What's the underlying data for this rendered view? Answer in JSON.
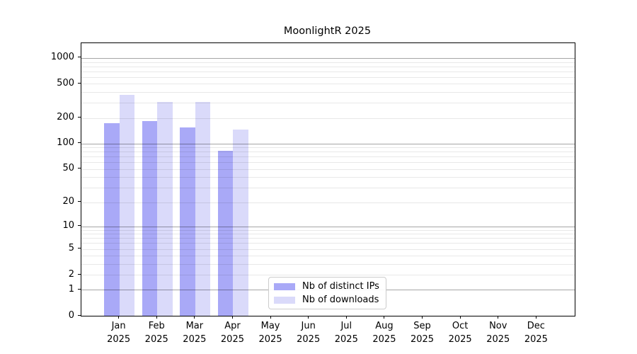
{
  "title": "MoonlightR 2025",
  "chart_data": {
    "type": "bar",
    "title": "MoonlightR 2025",
    "x": {
      "months": [
        "Jan",
        "Feb",
        "Mar",
        "Apr",
        "May",
        "Jun",
        "Jul",
        "Aug",
        "Sep",
        "Oct",
        "Nov",
        "Dec"
      ],
      "year": "2025"
    },
    "series": [
      {
        "name": "Nb of distinct IPs",
        "key": "distinct-ips",
        "color": "#a9a9f7",
        "values": [
          175,
          185,
          155,
          82,
          null,
          null,
          null,
          null,
          null,
          null,
          null,
          null
        ]
      },
      {
        "name": "Nb of downloads",
        "key": "downloads",
        "color": "#dadafa",
        "values": [
          370,
          310,
          310,
          145,
          null,
          null,
          null,
          null,
          null,
          null,
          null,
          null
        ]
      }
    ],
    "y_axis": {
      "scale": "log1p",
      "tick_labels": [
        1000,
        500,
        200,
        100,
        50,
        20,
        10,
        5,
        2,
        1,
        0
      ],
      "range": [
        0,
        1490
      ],
      "major_gridlines": [
        1,
        10,
        100,
        1000
      ]
    },
    "legend": {
      "position": "lower center"
    },
    "grid": {
      "major": true,
      "minor": true,
      "on_top_of_bars": true
    },
    "colors": {
      "axis": "#000000",
      "grid_major": "rgba(0,0,0,0.35)",
      "grid_minor": "rgba(0,0,0,0.09)",
      "background": "#ffffff"
    }
  }
}
